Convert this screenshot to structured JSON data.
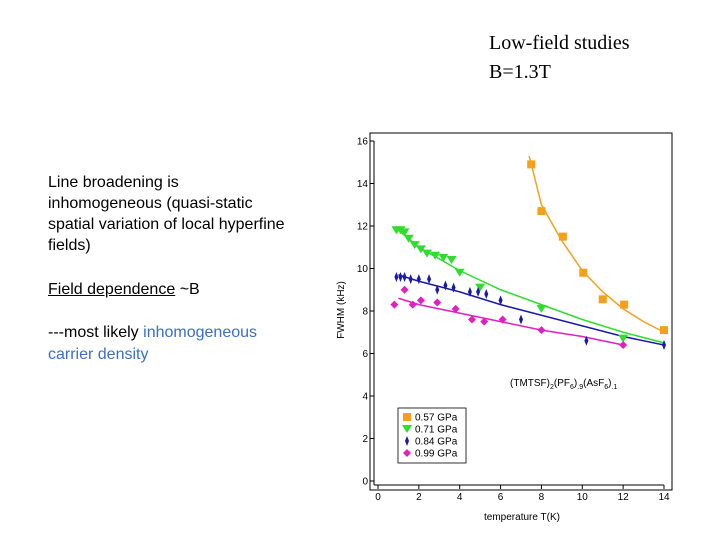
{
  "slide": {
    "title_lines": [
      "Low-field studies",
      "B=1.3T"
    ],
    "para1": [
      "Line broadening is",
      "inhomogeneous (quasi-static",
      "spatial variation of local hyperfine",
      "fields)"
    ],
    "para2": {
      "underlined": "Field dependence",
      "rest": "~B"
    },
    "para3": {
      "line1": "---most likely",
      "line1_blue": "inhomogeneous",
      "line2_blue": "carrier density"
    }
  },
  "chart_data": {
    "type": "scatter",
    "xlabel": "temperature T(K)",
    "ylabel": "FWHM (kHz)",
    "annotation_parts": [
      "(TMTSF)",
      "2",
      "(PF",
      "6",
      ")",
      ".9",
      "(AsF",
      "6",
      ")",
      ".1"
    ],
    "xlim": [
      0,
      14
    ],
    "xticks": [
      0,
      2,
      4,
      6,
      8,
      10,
      12,
      14
    ],
    "ylim": [
      0,
      16
    ],
    "yticks": [
      0,
      2,
      4,
      6,
      8,
      10,
      12,
      14,
      16
    ],
    "legend": "lower left",
    "series": [
      {
        "name": "0.57 GPa",
        "color": "#f5a01a",
        "marker": "square",
        "x": [
          7.5,
          8.0,
          9.05,
          10.05,
          11.0,
          12.05,
          14.0
        ],
        "values": [
          14.9,
          12.7,
          11.5,
          9.8,
          8.55,
          8.3,
          7.1
        ],
        "fit_x": [
          7.4,
          8,
          9,
          10,
          11,
          12,
          13,
          14
        ],
        "fit_values": [
          15.3,
          13.0,
          11.3,
          9.9,
          8.9,
          8.1,
          7.5,
          7.0
        ]
      },
      {
        "name": "0.71 GPa",
        "color": "#2fdd2f",
        "marker": "triangle-down",
        "x": [
          0.9,
          1.1,
          1.3,
          1.5,
          1.8,
          2.1,
          2.4,
          2.8,
          3.2,
          3.6,
          4.0,
          5.0,
          8.0,
          12.0
        ],
        "values": [
          11.8,
          11.8,
          11.7,
          11.4,
          11.1,
          10.9,
          10.7,
          10.6,
          10.5,
          10.4,
          9.8,
          9.1,
          8.1,
          6.7
        ],
        "fit_x": [
          1,
          2,
          4,
          6,
          8,
          10,
          12,
          14
        ],
        "fit_values": [
          11.8,
          11.0,
          9.9,
          9.0,
          8.3,
          7.6,
          7.0,
          6.5
        ]
      },
      {
        "name": "0.84 GPa",
        "color": "#1a1aa8",
        "marker": "thin-diamond",
        "x": [
          0.9,
          1.1,
          1.3,
          1.6,
          2.0,
          2.5,
          2.9,
          3.3,
          3.7,
          4.5,
          4.9,
          5.3,
          6.0,
          7.0,
          10.2,
          14.0
        ],
        "values": [
          9.6,
          9.6,
          9.6,
          9.5,
          9.5,
          9.5,
          9.0,
          9.2,
          9.1,
          8.9,
          8.9,
          8.8,
          8.5,
          7.6,
          6.6,
          6.4
        ],
        "fit_x": [
          1,
          2,
          4,
          6,
          8,
          10,
          12,
          14
        ],
        "fit_values": [
          9.7,
          9.4,
          8.9,
          8.3,
          7.8,
          7.3,
          6.8,
          6.4
        ]
      },
      {
        "name": "0.99 GPa",
        "color": "#e020c0",
        "marker": "diamond",
        "x": [
          0.8,
          1.3,
          1.7,
          2.1,
          2.9,
          3.8,
          4.6,
          5.2,
          6.1,
          8.0,
          12.0
        ],
        "values": [
          8.3,
          9.0,
          8.3,
          8.5,
          8.4,
          8.1,
          7.6,
          7.5,
          7.6,
          7.1,
          6.4
        ],
        "fit_x": [
          1,
          2,
          4,
          6,
          8,
          10,
          12
        ],
        "fit_values": [
          8.6,
          8.3,
          7.9,
          7.5,
          7.1,
          6.8,
          6.4
        ]
      }
    ]
  }
}
